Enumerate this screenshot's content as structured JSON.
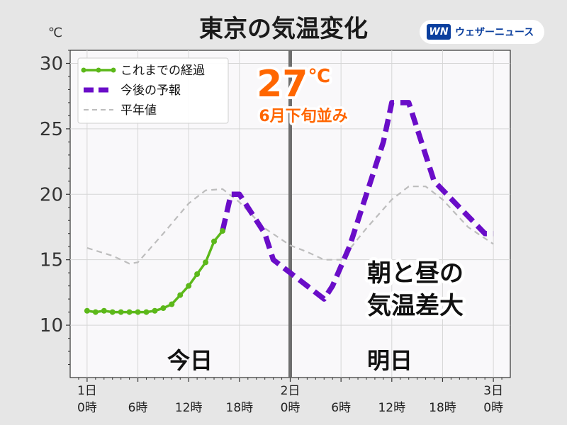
{
  "title": "東京の気温変化",
  "brand": {
    "logo": "WN",
    "name": "ウェザーニュース"
  },
  "unit": "℃",
  "labels": {
    "today": "今日",
    "tomorrow": "明日",
    "annotation_line1": "朝と昼の",
    "annotation_line2": "気温差大",
    "peak_value": "27",
    "peak_unit": "℃",
    "peak_note": "6月下旬並み"
  },
  "colors": {
    "observed": "#5cb81a",
    "forecast": "#6a0dc8",
    "normal": "#bdbdbd",
    "divider": "#6e6e6e",
    "callout": "#ff6600"
  },
  "chart_data": {
    "type": "line",
    "xlim": [
      -2,
      50
    ],
    "ylim": [
      6,
      31
    ],
    "yticks": [
      10,
      15,
      20,
      25,
      30
    ],
    "ytick_labels": [
      "10",
      "15",
      "20",
      "25",
      "30"
    ],
    "xticks": [
      0,
      6,
      12,
      18,
      24,
      30,
      36,
      42,
      48
    ],
    "xtick_labels": [
      [
        "1日",
        "0時"
      ],
      [
        "",
        "6時"
      ],
      [
        "",
        "12時"
      ],
      [
        "",
        "18時"
      ],
      [
        "2日",
        "0時"
      ],
      [
        "",
        "6時"
      ],
      [
        "",
        "12時"
      ],
      [
        "",
        "18時"
      ],
      [
        "3日",
        "0時"
      ]
    ],
    "divider_x": 24,
    "legend": {
      "position": "top-left",
      "entries": [
        "これまでの経過",
        "今後の予報",
        "平年値"
      ]
    },
    "series": [
      {
        "name": "これまでの経過",
        "style": "solid-markers",
        "points": [
          [
            0,
            11.1
          ],
          [
            1,
            11.0
          ],
          [
            2,
            11.1
          ],
          [
            3,
            11.0
          ],
          [
            4,
            11.0
          ],
          [
            5,
            11.0
          ],
          [
            6,
            11.0
          ],
          [
            7,
            11.0
          ],
          [
            8,
            11.1
          ],
          [
            9,
            11.3
          ],
          [
            10,
            11.6
          ],
          [
            11,
            12.3
          ],
          [
            12,
            13.0
          ],
          [
            13,
            13.9
          ],
          [
            14,
            14.8
          ],
          [
            15,
            16.4
          ],
          [
            16,
            17.2
          ]
        ]
      },
      {
        "name": "今後の予報",
        "style": "bold-dashed",
        "points": [
          [
            16,
            17.2
          ],
          [
            17,
            20.0
          ],
          [
            18,
            20.0
          ],
          [
            21,
            17.0
          ],
          [
            22,
            15.0
          ],
          [
            24,
            14.0
          ],
          [
            26,
            13.0
          ],
          [
            28,
            12.0
          ],
          [
            29,
            13.0
          ],
          [
            31,
            16.0
          ],
          [
            33,
            20.0
          ],
          [
            35,
            24.0
          ],
          [
            36,
            27.0
          ],
          [
            38,
            27.0
          ],
          [
            41,
            21.0
          ],
          [
            44,
            19.0
          ],
          [
            47,
            17.0
          ],
          [
            48,
            17.0
          ]
        ]
      },
      {
        "name": "平年値",
        "style": "thin-dashed",
        "points": [
          [
            0,
            15.9
          ],
          [
            3,
            15.3
          ],
          [
            5,
            14.7
          ],
          [
            6,
            14.8
          ],
          [
            9,
            17.0
          ],
          [
            12,
            19.3
          ],
          [
            14,
            20.3
          ],
          [
            16,
            20.4
          ],
          [
            18,
            19.4
          ],
          [
            21,
            17.4
          ],
          [
            24,
            16.1
          ],
          [
            26,
            15.6
          ],
          [
            28,
            15.0
          ],
          [
            30,
            15.0
          ],
          [
            33,
            17.4
          ],
          [
            36,
            19.6
          ],
          [
            38,
            20.6
          ],
          [
            40,
            20.6
          ],
          [
            42,
            19.6
          ],
          [
            45,
            17.5
          ],
          [
            48,
            16.2
          ]
        ]
      }
    ]
  }
}
